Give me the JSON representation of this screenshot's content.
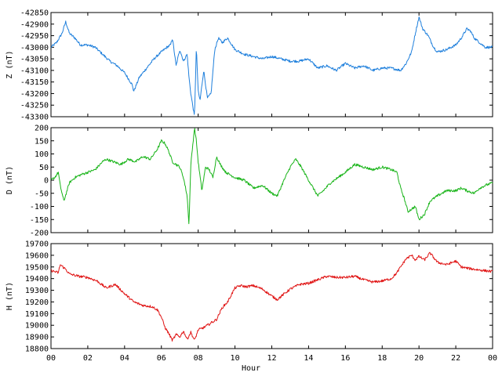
{
  "chart_data": {
    "type": "line",
    "xlabel": "Hour",
    "x_ticks": [
      "00",
      "02",
      "04",
      "06",
      "08",
      "10",
      "12",
      "14",
      "16",
      "18",
      "20",
      "22",
      "00"
    ],
    "xlim": [
      0,
      24
    ],
    "grid": false,
    "legend": "none",
    "panels": [
      {
        "id": "z",
        "ylabel": "Z (nT)",
        "ylim": [
          -43300,
          -42850
        ],
        "y_ticks": [
          "-42850",
          "-42900",
          "-42950",
          "-43000",
          "-43050",
          "-43100",
          "-43150",
          "-43200",
          "-43250",
          "-43300"
        ],
        "color": "#1e7fdc",
        "series": {
          "x": [
            0,
            0.3,
            0.6,
            0.8,
            1.0,
            1.3,
            1.6,
            2.0,
            2.4,
            2.8,
            3.2,
            3.6,
            4.0,
            4.4,
            4.5,
            4.8,
            5.2,
            5.6,
            6.0,
            6.3,
            6.5,
            6.6,
            6.8,
            7.0,
            7.2,
            7.4,
            7.5,
            7.6,
            7.8,
            7.9,
            8.0,
            8.1,
            8.3,
            8.5,
            8.7,
            8.9,
            9.1,
            9.3,
            9.6,
            10.0,
            10.5,
            11.0,
            11.5,
            12.0,
            12.5,
            13.0,
            13.5,
            14.0,
            14.5,
            15.0,
            15.5,
            16.0,
            16.5,
            17.0,
            17.5,
            18.0,
            18.5,
            19.0,
            19.3,
            19.6,
            19.8,
            20.0,
            20.2,
            20.5,
            20.8,
            21.0,
            21.5,
            22.0,
            22.3,
            22.6,
            22.8,
            23.0,
            23.3,
            23.6,
            24.0
          ],
          "y": [
            -43000,
            -42980,
            -42940,
            -42890,
            -42940,
            -42960,
            -42990,
            -42990,
            -43000,
            -43030,
            -43060,
            -43080,
            -43110,
            -43160,
            -43190,
            -43130,
            -43090,
            -43050,
            -43020,
            -43000,
            -42990,
            -42960,
            -43080,
            -43010,
            -43060,
            -43030,
            -43130,
            -43200,
            -43300,
            -43000,
            -43190,
            -43230,
            -43100,
            -43220,
            -43200,
            -43010,
            -42960,
            -42980,
            -42960,
            -43010,
            -43030,
            -43040,
            -43050,
            -43040,
            -43050,
            -43060,
            -43060,
            -43050,
            -43090,
            -43080,
            -43100,
            -43070,
            -43090,
            -43080,
            -43100,
            -43090,
            -43090,
            -43100,
            -43070,
            -43020,
            -42940,
            -42870,
            -42920,
            -42950,
            -43000,
            -43020,
            -43010,
            -42990,
            -42960,
            -42920,
            -42930,
            -42960,
            -42980,
            -43000,
            -43000
          ]
        }
      },
      {
        "id": "d",
        "ylabel": "D (nT)",
        "ylim": [
          -200,
          200
        ],
        "y_ticks": [
          "200",
          "150",
          "100",
          "50",
          "0",
          "-50",
          "-100",
          "-150",
          "-200"
        ],
        "color": "#19b419",
        "series": {
          "x": [
            0,
            0.2,
            0.4,
            0.5,
            0.7,
            1.0,
            1.3,
            1.6,
            2.0,
            2.4,
            2.8,
            3.0,
            3.4,
            3.8,
            4.2,
            4.6,
            5.0,
            5.4,
            5.8,
            6.0,
            6.2,
            6.4,
            6.6,
            6.8,
            7.0,
            7.2,
            7.4,
            7.5,
            7.6,
            7.8,
            7.9,
            8.0,
            8.2,
            8.4,
            8.6,
            8.8,
            9.0,
            9.2,
            9.5,
            10.0,
            10.5,
            11.0,
            11.5,
            12.0,
            12.3,
            12.6,
            13.0,
            13.3,
            13.6,
            14.0,
            14.5,
            14.8,
            15.2,
            15.6,
            16.0,
            16.5,
            17.0,
            17.5,
            18.0,
            18.5,
            18.8,
            19.0,
            19.2,
            19.4,
            19.6,
            19.8,
            20.0,
            20.3,
            20.6,
            21.0,
            21.5,
            22.0,
            22.3,
            22.6,
            23.0,
            23.3,
            23.6,
            24.0
          ],
          "y": [
            0,
            10,
            30,
            -20,
            -80,
            -10,
            10,
            20,
            30,
            40,
            70,
            80,
            70,
            60,
            80,
            70,
            90,
            80,
            120,
            150,
            140,
            110,
            70,
            60,
            50,
            10,
            -60,
            -170,
            60,
            200,
            150,
            70,
            -40,
            50,
            40,
            10,
            90,
            60,
            30,
            10,
            0,
            -30,
            -20,
            -50,
            -60,
            -10,
            50,
            80,
            50,
            0,
            -60,
            -40,
            -10,
            10,
            30,
            60,
            50,
            40,
            50,
            40,
            30,
            -30,
            -70,
            -120,
            -110,
            -100,
            -150,
            -130,
            -80,
            -60,
            -40,
            -40,
            -30,
            -40,
            -50,
            -30,
            -20,
            -10
          ]
        }
      },
      {
        "id": "h",
        "ylabel": "H (nT)",
        "ylim": [
          18800,
          19700
        ],
        "y_ticks": [
          "19700",
          "19600",
          "19500",
          "19400",
          "19300",
          "19200",
          "19100",
          "19000",
          "18900",
          "18800"
        ],
        "color": "#e01414",
        "series": {
          "x": [
            0,
            0.2,
            0.4,
            0.5,
            0.8,
            1.0,
            1.5,
            2.0,
            2.5,
            3.0,
            3.5,
            4.0,
            4.5,
            5.0,
            5.5,
            5.8,
            6.0,
            6.2,
            6.4,
            6.6,
            6.8,
            7.0,
            7.2,
            7.4,
            7.6,
            7.8,
            8.0,
            8.3,
            8.6,
            9.0,
            9.3,
            9.6,
            9.8,
            10.0,
            10.3,
            10.6,
            11.0,
            11.5,
            12.0,
            12.3,
            12.6,
            13.0,
            13.5,
            14.0,
            14.5,
            15.0,
            15.5,
            16.0,
            16.5,
            17.0,
            17.5,
            18.0,
            18.5,
            18.8,
            19.0,
            19.3,
            19.6,
            19.8,
            20.0,
            20.3,
            20.6,
            21.0,
            21.5,
            22.0,
            22.3,
            22.6,
            23.0,
            23.5,
            24.0
          ],
          "y": [
            19470,
            19460,
            19450,
            19520,
            19480,
            19440,
            19420,
            19410,
            19380,
            19320,
            19350,
            19270,
            19200,
            19170,
            19160,
            19130,
            19070,
            18980,
            18930,
            18870,
            18920,
            18900,
            18950,
            18880,
            18940,
            18870,
            18960,
            18980,
            19010,
            19050,
            19150,
            19200,
            19260,
            19320,
            19340,
            19330,
            19340,
            19310,
            19250,
            19220,
            19260,
            19310,
            19350,
            19360,
            19390,
            19420,
            19410,
            19410,
            19420,
            19390,
            19370,
            19380,
            19400,
            19450,
            19500,
            19570,
            19600,
            19560,
            19590,
            19560,
            19620,
            19540,
            19520,
            19550,
            19500,
            19490,
            19480,
            19470,
            19460
          ]
        }
      }
    ]
  }
}
